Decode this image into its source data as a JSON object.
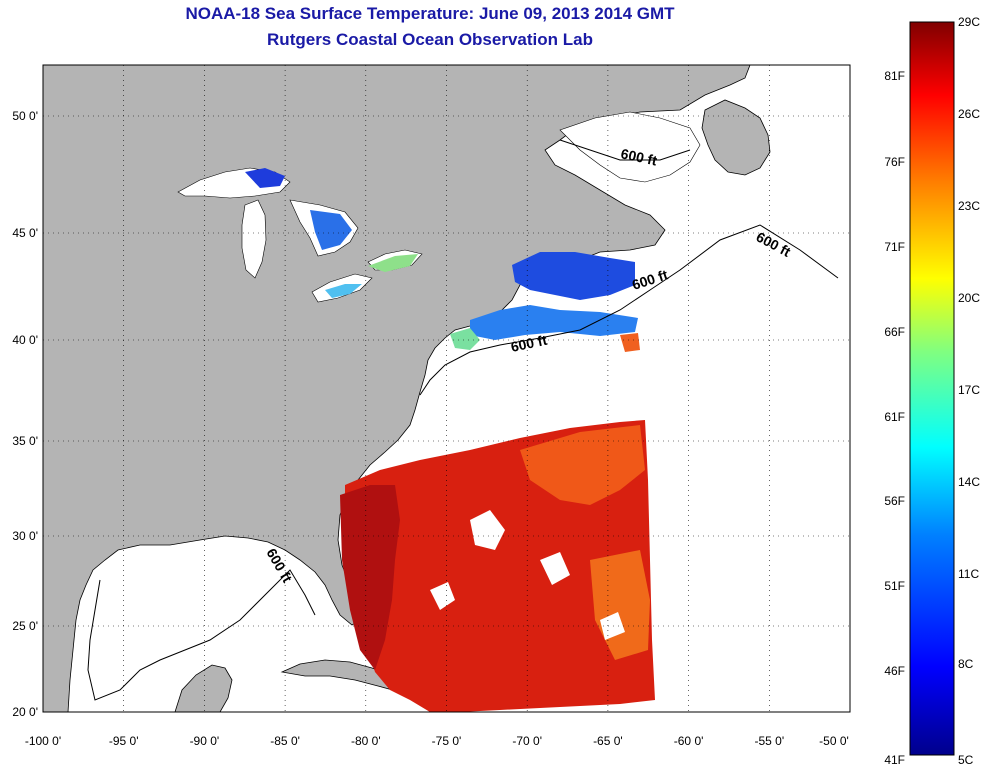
{
  "title": "NOAA-18 Sea Surface Temperature:  June 09, 2013 2014 GMT",
  "subtitle": "Rutgers Coastal Ocean Observation Lab",
  "x_ticks": [
    "-100 0'",
    "-95 0'",
    "-90 0'",
    "-85 0'",
    "-80 0'",
    "-75 0'",
    "-70 0'",
    "-65 0'",
    "-60 0'",
    "-55 0'",
    "-50 0'"
  ],
  "y_ticks": [
    "50 0'",
    "45 0'",
    "40 0'",
    "35 0'",
    "30 0'",
    "25 0'",
    "20 0'"
  ],
  "colorbar": {
    "celsius": [
      "29C",
      "26C",
      "23C",
      "20C",
      "17C",
      "14C",
      "11C",
      "8C",
      "5C"
    ],
    "fahrenheit": [
      "81F",
      "76F",
      "71F",
      "66F",
      "61F",
      "56F",
      "51F",
      "46F",
      "41F"
    ]
  },
  "contour_labels": [
    "600 ft",
    "600 ft",
    "600 ft",
    "600 ft",
    "600 ft"
  ],
  "colors": {
    "land": "#b4b4b4",
    "ocean": "#ffffff",
    "title": "#1a1aa6",
    "warm": "#c81400",
    "cold": "#1e3cdc"
  }
}
